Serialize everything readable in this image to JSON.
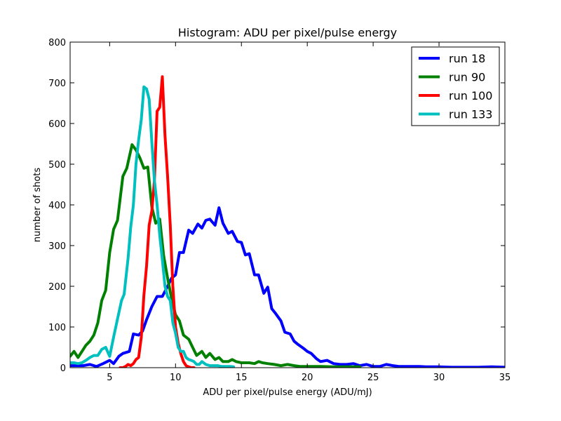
{
  "chart_data": {
    "type": "line",
    "title": "Histogram: ADU per pixel/pulse energy",
    "xlabel": "ADU per pixel/pulse energy (ADU/mJ)",
    "ylabel": "number of shots",
    "xlim": [
      2,
      35
    ],
    "ylim": [
      0,
      800
    ],
    "xticks": [
      5,
      10,
      15,
      20,
      25,
      30,
      35
    ],
    "yticks": [
      0,
      100,
      200,
      300,
      400,
      500,
      600,
      700,
      800
    ],
    "grid": false,
    "legend_position": "top-right",
    "series": [
      {
        "name": "run 18",
        "color": "#0000ff",
        "x": [
          2.0,
          2.5,
          3.0,
          3.5,
          4.0,
          4.5,
          5.0,
          5.3,
          5.7,
          6.0,
          6.5,
          6.8,
          7.2,
          7.5,
          7.8,
          8.2,
          8.6,
          9.0,
          9.4,
          9.7,
          10.0,
          10.3,
          10.6,
          11.0,
          11.3,
          11.7,
          12.0,
          12.3,
          12.6,
          13.0,
          13.3,
          13.6,
          14.0,
          14.3,
          14.7,
          15.0,
          15.3,
          15.6,
          16.0,
          16.3,
          16.7,
          17.0,
          17.3,
          17.6,
          18.0,
          18.3,
          18.7,
          19.0,
          19.3,
          19.7,
          20.0,
          20.3,
          20.7,
          21.0,
          21.5,
          22.0,
          22.5,
          23.0,
          23.5,
          24.0,
          24.5,
          25.0,
          25.5,
          26.0,
          26.5,
          27.0,
          27.5,
          28.0,
          28.5,
          29.0,
          29.5,
          30.0,
          31.0,
          32.0,
          33.0,
          34.0,
          35.0
        ],
        "y": [
          5,
          5,
          5,
          8,
          3,
          10,
          18,
          10,
          28,
          35,
          40,
          83,
          80,
          90,
          118,
          150,
          175,
          175,
          200,
          220,
          228,
          283,
          283,
          338,
          330,
          353,
          343,
          362,
          365,
          350,
          393,
          355,
          330,
          335,
          310,
          308,
          277,
          280,
          228,
          228,
          183,
          198,
          145,
          133,
          115,
          87,
          83,
          65,
          57,
          48,
          40,
          35,
          22,
          15,
          18,
          10,
          8,
          8,
          10,
          5,
          8,
          3,
          3,
          8,
          5,
          3,
          3,
          3,
          3,
          2,
          2,
          2,
          1,
          1,
          1,
          2,
          1
        ]
      },
      {
        "name": "run 90",
        "color": "#008000",
        "x": [
          2.0,
          2.3,
          2.6,
          2.9,
          3.2,
          3.5,
          3.8,
          4.1,
          4.4,
          4.7,
          5.0,
          5.3,
          5.6,
          6.0,
          6.3,
          6.7,
          7.0,
          7.3,
          7.6,
          7.9,
          8.2,
          8.5,
          8.8,
          9.1,
          9.4,
          9.7,
          10.0,
          10.3,
          10.6,
          11.0,
          11.3,
          11.6,
          12.0,
          12.3,
          12.6,
          13.0,
          13.3,
          13.6,
          14.0,
          14.3,
          14.6,
          15.0,
          15.3,
          15.6,
          16.0,
          16.3,
          16.6,
          17.0,
          17.5,
          18.0,
          18.5,
          19.0,
          19.5,
          20.0,
          21.0,
          22.0,
          23.0,
          24.0
        ],
        "y": [
          28,
          40,
          25,
          40,
          55,
          65,
          80,
          110,
          165,
          190,
          283,
          340,
          362,
          470,
          490,
          548,
          535,
          515,
          490,
          493,
          395,
          355,
          365,
          275,
          220,
          170,
          130,
          115,
          80,
          70,
          50,
          30,
          40,
          25,
          35,
          20,
          25,
          15,
          15,
          20,
          15,
          12,
          12,
          12,
          10,
          15,
          12,
          10,
          8,
          5,
          8,
          5,
          3,
          3,
          3,
          2,
          2,
          2
        ]
      },
      {
        "name": "run 100",
        "color": "#ff0000",
        "x": [
          5.8,
          6.0,
          6.2,
          6.4,
          6.6,
          6.8,
          7.0,
          7.2,
          7.4,
          7.6,
          7.8,
          8.0,
          8.2,
          8.4,
          8.6,
          8.8,
          9.0,
          9.2,
          9.4,
          9.6,
          9.8,
          10.0,
          10.2,
          10.4,
          10.6,
          10.8,
          11.0,
          11.2,
          11.4
        ],
        "y": [
          0,
          0,
          3,
          8,
          5,
          10,
          20,
          25,
          75,
          178,
          250,
          350,
          385,
          460,
          630,
          640,
          715,
          570,
          470,
          350,
          200,
          100,
          60,
          35,
          15,
          5,
          2,
          0,
          0
        ]
      },
      {
        "name": "run 133",
        "color": "#00bfbf",
        "x": [
          2.0,
          2.3,
          2.6,
          2.9,
          3.2,
          3.5,
          3.8,
          4.1,
          4.4,
          4.7,
          5.0,
          5.3,
          5.6,
          5.9,
          6.1,
          6.4,
          6.6,
          6.8,
          7.0,
          7.2,
          7.4,
          7.6,
          7.8,
          8.0,
          8.2,
          8.4,
          8.6,
          8.8,
          9.0,
          9.2,
          9.4,
          9.6,
          9.8,
          10.0,
          10.2,
          10.4,
          10.6,
          10.8,
          11.0,
          11.2,
          11.4,
          11.6,
          11.8,
          12.0,
          12.3,
          12.6,
          12.9,
          13.2,
          13.5,
          13.8,
          14.1,
          14.4
        ],
        "y": [
          12,
          12,
          10,
          12,
          18,
          25,
          30,
          30,
          45,
          50,
          28,
          75,
          120,
          165,
          180,
          270,
          345,
          400,
          500,
          560,
          610,
          690,
          685,
          660,
          555,
          460,
          400,
          325,
          265,
          200,
          175,
          165,
          110,
          85,
          50,
          40,
          40,
          25,
          20,
          18,
          15,
          8,
          8,
          15,
          8,
          5,
          5,
          5,
          3,
          3,
          3,
          2
        ]
      }
    ]
  }
}
